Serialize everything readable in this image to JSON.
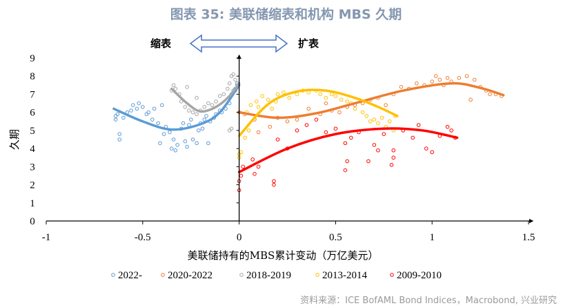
{
  "title": "图表 35: 美联储缩表和机构 MBS 久期",
  "source": "资料来源：ICE BofAML Bond Indices，Macrobond, 兴业研究",
  "annotations": {
    "left": "缩表",
    "right": "扩表"
  },
  "chart_data": {
    "type": "scatter",
    "xlabel": "美联储持有的MBS累计变动（万亿美元）",
    "ylabel": "久期",
    "xlim": [
      -1,
      1.5
    ],
    "ylim": [
      0,
      9
    ],
    "xticks": [
      "-1",
      "-0.5",
      "0",
      "0.5",
      "1",
      "1.5"
    ],
    "yticks": [
      "0",
      "1",
      "2",
      "3",
      "4",
      "5",
      "6",
      "7",
      "8",
      "9"
    ],
    "grid": false,
    "legend": "bottom",
    "series": [
      {
        "name": "2022-",
        "color": "#5b9bd5",
        "points": [
          [
            -0.64,
            5.8
          ],
          [
            -0.64,
            5.6
          ],
          [
            -0.63,
            5.9
          ],
          [
            -0.62,
            4.8
          ],
          [
            -0.62,
            4.5
          ],
          [
            -0.6,
            5.7
          ],
          [
            -0.58,
            6.0
          ],
          [
            -0.56,
            6.1
          ],
          [
            -0.55,
            6.4
          ],
          [
            -0.53,
            6.2
          ],
          [
            -0.52,
            6.5
          ],
          [
            -0.5,
            6.3
          ],
          [
            -0.48,
            5.9
          ],
          [
            -0.47,
            6.0
          ],
          [
            -0.45,
            5.6
          ],
          [
            -0.44,
            6.2
          ],
          [
            -0.42,
            5.4
          ],
          [
            -0.41,
            4.3
          ],
          [
            -0.4,
            6.4
          ],
          [
            -0.39,
            4.8
          ],
          [
            -0.38,
            5.2
          ],
          [
            -0.36,
            4.9
          ],
          [
            -0.35,
            4.0
          ],
          [
            -0.34,
            4.5
          ],
          [
            -0.33,
            3.9
          ],
          [
            -0.32,
            4.2
          ],
          [
            -0.3,
            5.1
          ],
          [
            -0.29,
            5.4
          ],
          [
            -0.28,
            4.4
          ],
          [
            -0.27,
            4.1
          ],
          [
            -0.25,
            5.6
          ],
          [
            -0.24,
            4.5
          ],
          [
            -0.22,
            4.3
          ],
          [
            -0.21,
            5.0
          ],
          [
            -0.2,
            5.4
          ],
          [
            -0.18,
            5.6
          ],
          [
            -0.17,
            5.8
          ],
          [
            -0.15,
            5.5
          ],
          [
            -0.13,
            5.7
          ],
          [
            -0.12,
            5.9
          ],
          [
            -0.1,
            6.1
          ],
          [
            -0.09,
            6.0
          ],
          [
            -0.07,
            6.2
          ],
          [
            -0.05,
            6.5
          ],
          [
            -0.04,
            7.0
          ],
          [
            -0.03,
            7.2
          ],
          [
            -0.02,
            7.3
          ],
          [
            -0.01,
            7.6
          ],
          [
            -0.16,
            4.3
          ],
          [
            -0.26,
            5.3
          ],
          [
            -0.19,
            5.1
          ]
        ],
        "trend": [
          [
            -0.65,
            6.2
          ],
          [
            -0.5,
            5.5
          ],
          [
            -0.35,
            5.05
          ],
          [
            -0.2,
            5.35
          ],
          [
            -0.1,
            6.0
          ],
          [
            0,
            7.5
          ]
        ]
      },
      {
        "name": "2020-2022",
        "color": "#ed7d31",
        "points": [
          [
            0.0,
            6.0
          ],
          [
            0.03,
            5.9
          ],
          [
            0.08,
            5.6
          ],
          [
            0.1,
            4.9
          ],
          [
            0.16,
            5.2
          ],
          [
            0.2,
            5.7
          ],
          [
            0.25,
            5.5
          ],
          [
            0.3,
            5.6
          ],
          [
            0.36,
            6.2
          ],
          [
            0.42,
            5.9
          ],
          [
            0.48,
            6.1
          ],
          [
            0.52,
            6.0
          ],
          [
            0.56,
            6.3
          ],
          [
            0.6,
            6.4
          ],
          [
            0.64,
            6.5
          ],
          [
            0.68,
            6.7
          ],
          [
            0.72,
            6.8
          ],
          [
            0.76,
            6.4
          ],
          [
            0.8,
            7.0
          ],
          [
            0.84,
            7.4
          ],
          [
            0.88,
            7.3
          ],
          [
            0.92,
            7.6
          ],
          [
            0.96,
            7.5
          ],
          [
            1.0,
            7.7
          ],
          [
            1.02,
            8.0
          ],
          [
            1.04,
            7.8
          ],
          [
            1.06,
            7.5
          ],
          [
            1.08,
            7.9
          ],
          [
            1.1,
            7.7
          ],
          [
            1.14,
            7.9
          ],
          [
            1.18,
            8.0
          ],
          [
            1.22,
            7.8
          ],
          [
            1.25,
            7.4
          ],
          [
            1.28,
            7.2
          ],
          [
            1.3,
            7.0
          ],
          [
            1.33,
            7.0
          ],
          [
            1.36,
            6.9
          ],
          [
            1.2,
            6.7
          ],
          [
            0.45,
            6.5
          ]
        ],
        "trend": [
          [
            0,
            6.0
          ],
          [
            0.2,
            5.7
          ],
          [
            0.4,
            5.95
          ],
          [
            0.6,
            6.5
          ],
          [
            0.85,
            7.2
          ],
          [
            1.1,
            7.6
          ],
          [
            1.25,
            7.35
          ],
          [
            1.37,
            6.95
          ]
        ]
      },
      {
        "name": "2018-2019",
        "color": "#a5a5a5",
        "points": [
          [
            -0.35,
            7.2
          ],
          [
            -0.34,
            7.5
          ],
          [
            -0.33,
            7.3
          ],
          [
            -0.31,
            7.0
          ],
          [
            -0.3,
            6.6
          ],
          [
            -0.28,
            6.3
          ],
          [
            -0.26,
            6.1
          ],
          [
            -0.24,
            6.0
          ],
          [
            -0.22,
            5.9
          ],
          [
            -0.2,
            6.1
          ],
          [
            -0.18,
            6.3
          ],
          [
            -0.16,
            6.5
          ],
          [
            -0.14,
            6.4
          ],
          [
            -0.12,
            6.6
          ],
          [
            -0.1,
            6.9
          ],
          [
            -0.08,
            7.0
          ],
          [
            -0.06,
            7.3
          ],
          [
            -0.05,
            7.6
          ],
          [
            -0.04,
            8.0
          ],
          [
            -0.03,
            8.1
          ],
          [
            -0.02,
            7.8
          ],
          [
            -0.01,
            7.5
          ],
          [
            -0.05,
            5.0
          ],
          [
            -0.04,
            5.1
          ],
          [
            -0.02,
            7.2
          ],
          [
            -0.27,
            7.4
          ],
          [
            -0.22,
            6.8
          ]
        ],
        "trend": [
          [
            -0.35,
            7.3
          ],
          [
            -0.27,
            6.5
          ],
          [
            -0.2,
            6.05
          ],
          [
            -0.12,
            6.3
          ],
          [
            -0.05,
            6.9
          ],
          [
            0,
            7.6
          ]
        ]
      },
      {
        "name": "2013-2014",
        "color": "#ffc000",
        "points": [
          [
            0.0,
            3.7
          ],
          [
            0.0,
            3.5
          ],
          [
            0.01,
            3.8
          ],
          [
            0.03,
            4.6
          ],
          [
            0.04,
            6.0
          ],
          [
            0.06,
            6.4
          ],
          [
            0.09,
            6.6
          ],
          [
            0.1,
            6.3
          ],
          [
            0.12,
            6.9
          ],
          [
            0.15,
            6.7
          ],
          [
            0.17,
            6.2
          ],
          [
            0.19,
            6.6
          ],
          [
            0.2,
            7.0
          ],
          [
            0.23,
            7.1
          ],
          [
            0.26,
            6.8
          ],
          [
            0.3,
            7.0
          ],
          [
            0.33,
            7.2
          ],
          [
            0.36,
            7.1
          ],
          [
            0.4,
            7.2
          ],
          [
            0.42,
            7.0
          ],
          [
            0.45,
            6.8
          ],
          [
            0.48,
            7.0
          ],
          [
            0.5,
            6.9
          ],
          [
            0.53,
            6.7
          ],
          [
            0.56,
            6.6
          ],
          [
            0.58,
            6.5
          ],
          [
            0.6,
            6.2
          ],
          [
            0.64,
            6.0
          ],
          [
            0.66,
            5.8
          ],
          [
            0.68,
            5.5
          ],
          [
            0.7,
            5.6
          ],
          [
            0.72,
            5.4
          ],
          [
            0.74,
            5.7
          ],
          [
            0.76,
            5.2
          ],
          [
            0.78,
            5.5
          ],
          [
            0.8,
            5.0
          ],
          [
            0.81,
            5.8
          ],
          [
            0.05,
            5.0
          ]
        ],
        "trend": [
          [
            0,
            4.7
          ],
          [
            0.15,
            6.45
          ],
          [
            0.3,
            7.15
          ],
          [
            0.45,
            7.2
          ],
          [
            0.6,
            6.8
          ],
          [
            0.72,
            6.3
          ],
          [
            0.82,
            5.8
          ]
        ]
      },
      {
        "name": "2009-2010",
        "color": "#ff0000",
        "points": [
          [
            0.0,
            2.2
          ],
          [
            0.0,
            1.7
          ],
          [
            0.01,
            2.5
          ],
          [
            0.02,
            3.0
          ],
          [
            0.07,
            3.4
          ],
          [
            0.08,
            2.6
          ],
          [
            0.1,
            3.0
          ],
          [
            0.18,
            2.2
          ],
          [
            0.18,
            2.0
          ],
          [
            0.2,
            4.5
          ],
          [
            0.25,
            4.0
          ],
          [
            0.3,
            5.0
          ],
          [
            0.35,
            5.3
          ],
          [
            0.4,
            5.6
          ],
          [
            0.45,
            4.9
          ],
          [
            0.5,
            5.1
          ],
          [
            0.55,
            4.3
          ],
          [
            0.58,
            4.6
          ],
          [
            0.62,
            4.9
          ],
          [
            0.67,
            3.3
          ],
          [
            0.7,
            4.2
          ],
          [
            0.72,
            3.9
          ],
          [
            0.75,
            4.8
          ],
          [
            0.8,
            3.9
          ],
          [
            0.85,
            5.0
          ],
          [
            0.9,
            4.6
          ],
          [
            0.93,
            5.3
          ],
          [
            0.97,
            4.0
          ],
          [
            1.0,
            3.8
          ],
          [
            1.04,
            4.7
          ],
          [
            1.08,
            5.2
          ],
          [
            1.1,
            5.0
          ],
          [
            1.12,
            4.6
          ],
          [
            0.8,
            3.5
          ],
          [
            0.79,
            3.1
          ],
          [
            0.55,
            2.8
          ],
          [
            0.56,
            3.3
          ]
        ],
        "trend": [
          [
            0,
            2.7
          ],
          [
            0.25,
            4.0
          ],
          [
            0.5,
            4.8
          ],
          [
            0.75,
            5.1
          ],
          [
            0.95,
            5.0
          ],
          [
            1.13,
            4.6
          ]
        ]
      }
    ]
  }
}
